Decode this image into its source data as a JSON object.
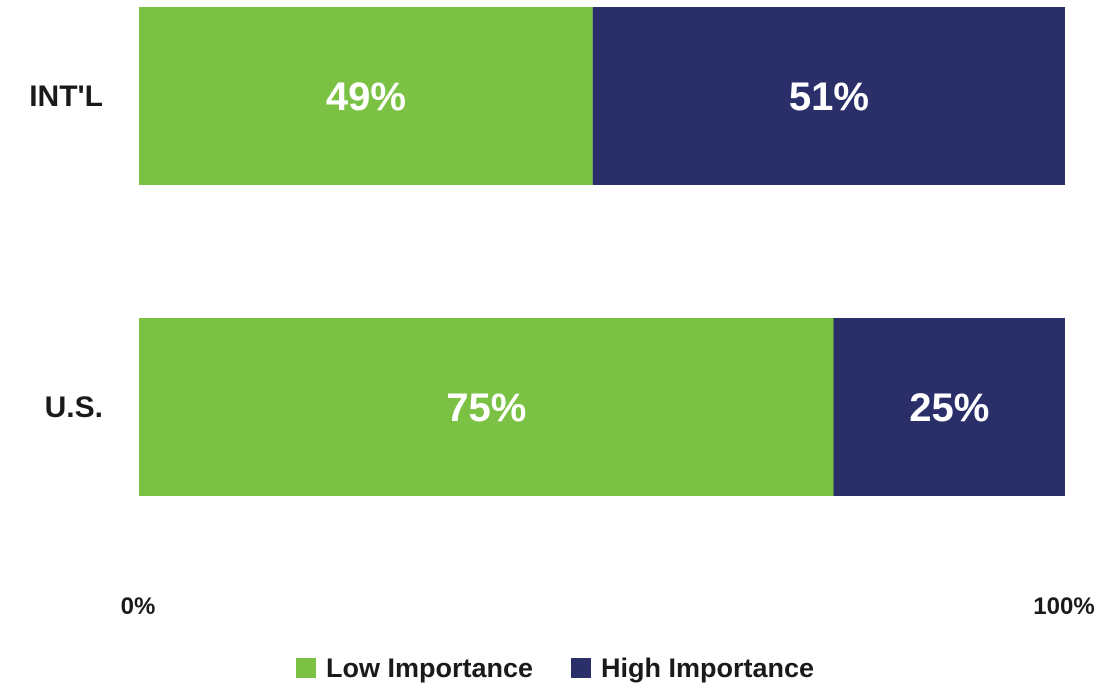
{
  "chart_data": {
    "type": "bar",
    "orientation": "horizontal",
    "stacked": true,
    "categories": [
      "INT'L",
      "U.S."
    ],
    "series": [
      {
        "name": "Low Importance",
        "values": [
          49,
          75
        ],
        "labels": [
          "49%",
          "75%"
        ],
        "color": "#7bc143"
      },
      {
        "name": "High Importance",
        "values": [
          51,
          25
        ],
        "labels": [
          "51%",
          "25%"
        ],
        "color": "#2a2e69"
      }
    ],
    "xlim": [
      0,
      100
    ],
    "x_ticks": [
      "0%",
      "100%"
    ],
    "title": "",
    "xlabel": "",
    "ylabel": "",
    "grid": false,
    "legend_position": "bottom"
  }
}
